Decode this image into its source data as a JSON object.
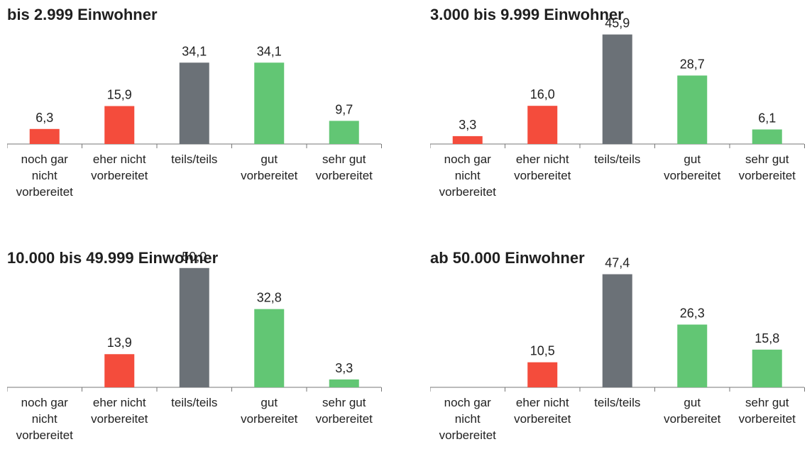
{
  "colors": {
    "negative": "#f44c3c",
    "neutral": "#6b7177",
    "positive": "#62c674",
    "axis": "#777777"
  },
  "chart_data": [
    {
      "type": "bar",
      "title": "bis 2.999 Einwohner",
      "categories": [
        "noch gar nicht vorbereitet",
        "eher nicht vorbereitet",
        "teils/teils",
        "gut vorbereitet",
        "sehr gut vorbereitet"
      ],
      "values": [
        6.3,
        15.9,
        34.1,
        34.1,
        9.7
      ],
      "value_labels": [
        "6,3",
        "15,9",
        "34,1",
        "34,1",
        "9,7"
      ],
      "ylim": [
        0,
        55
      ]
    },
    {
      "type": "bar",
      "title": "3.000 bis 9.999 Einwohner",
      "categories": [
        "noch gar nicht vorbereitet",
        "eher nicht vorbereitet",
        "teils/teils",
        "gut vorbereitet",
        "sehr gut vorbereitet"
      ],
      "values": [
        3.3,
        16.0,
        45.9,
        28.7,
        6.1
      ],
      "value_labels": [
        "3,3",
        "16,0",
        "45,9",
        "28,7",
        "6,1"
      ],
      "ylim": [
        0,
        55
      ]
    },
    {
      "type": "bar",
      "title": "10.000 bis 49.999 Einwohner",
      "categories": [
        "noch gar nicht vorbereitet",
        "eher nicht vorbereitet",
        "teils/teils",
        "gut vorbereitet",
        "sehr gut vorbereitet"
      ],
      "values": [
        null,
        13.9,
        50.0,
        32.8,
        3.3
      ],
      "value_labels": [
        "",
        "13,9",
        "50,0",
        "32,8",
        "3,3"
      ],
      "ylim": [
        0,
        55
      ]
    },
    {
      "type": "bar",
      "title": "ab 50.000 Einwohner",
      "categories": [
        "noch gar nicht vorbereitet",
        "eher nicht vorbereitet",
        "teils/teils",
        "gut vorbereitet",
        "sehr gut vorbereitet"
      ],
      "values": [
        null,
        10.5,
        47.4,
        26.3,
        15.8
      ],
      "value_labels": [
        "",
        "10,5",
        "47,4",
        "26,3",
        "15,8"
      ],
      "ylim": [
        0,
        55
      ]
    }
  ]
}
